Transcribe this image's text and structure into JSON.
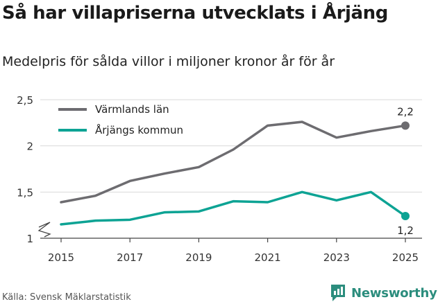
{
  "title": "Så har villapriserna utvecklats i Årjäng",
  "subtitle": "Medelpris för sålda villor i miljoner kronor år för år",
  "source": "Källa: Svensk Mäklarstatistik",
  "brand": "Newsworthy",
  "colors": {
    "varmland": "#6d6c70",
    "arjang": "#0da394",
    "grid": "#d9d9d9",
    "brand": "#2b8d7d"
  },
  "chart_data": {
    "type": "line",
    "x": [
      2015,
      2016,
      2017,
      2018,
      2019,
      2020,
      2021,
      2022,
      2023,
      2024,
      2025
    ],
    "x_ticks": [
      "2015",
      "2017",
      "2019",
      "2021",
      "2023",
      "2025"
    ],
    "y_ticks": [
      "1",
      "1,5",
      "2",
      "2,5"
    ],
    "ylim": [
      1,
      2.5
    ],
    "axis_break": true,
    "grid": true,
    "legend_position": "top-left",
    "series": [
      {
        "name": "Värmlands län",
        "color": "#6d6c70",
        "values": [
          1.39,
          1.46,
          1.62,
          1.7,
          1.77,
          1.96,
          2.22,
          2.26,
          2.09,
          2.16,
          2.22
        ],
        "end_label": "2,2"
      },
      {
        "name": "Årjängs kommun",
        "color": "#0da394",
        "values": [
          1.15,
          1.19,
          1.2,
          1.28,
          1.29,
          1.4,
          1.39,
          1.5,
          1.41,
          1.5,
          1.24
        ],
        "end_label": "1,2"
      }
    ]
  }
}
